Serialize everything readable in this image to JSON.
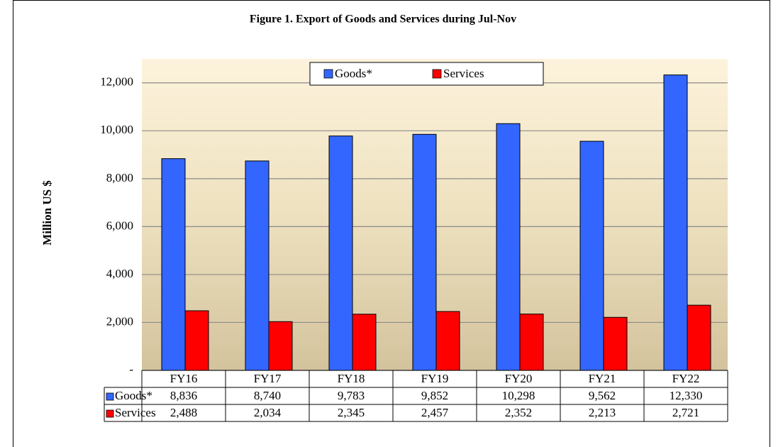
{
  "chart_data": {
    "type": "bar",
    "title": "Figure 1. Export of Goods and Services during Jul-Nov",
    "y_label": "Million US $",
    "categories": [
      "FY16",
      "FY17",
      "FY18",
      "FY19",
      "FY20",
      "FY21",
      "FY22"
    ],
    "series": [
      {
        "name": "Goods*",
        "color": "#3366ff",
        "values": [
          8836,
          8740,
          9783,
          9852,
          10298,
          9562,
          12330
        ],
        "value_labels": [
          "8,836",
          "8,740",
          "9,783",
          "9,852",
          "10,298",
          "9,562",
          "12,330"
        ]
      },
      {
        "name": "Services",
        "color": "#ff0000",
        "values": [
          2488,
          2034,
          2345,
          2457,
          2352,
          2213,
          2721
        ],
        "value_labels": [
          "2,488",
          "2,034",
          "2,345",
          "2,457",
          "2,352",
          "2,213",
          "2,721"
        ]
      }
    ],
    "ylim": [
      0,
      13000
    ],
    "yticks": [
      {
        "value": 0,
        "label": "-"
      },
      {
        "value": 2000,
        "label": "2,000"
      },
      {
        "value": 4000,
        "label": "4,000"
      },
      {
        "value": 6000,
        "label": "6,000"
      },
      {
        "value": 8000,
        "label": "8,000"
      },
      {
        "value": 10000,
        "label": "10,000"
      },
      {
        "value": 12000,
        "label": "12,000"
      }
    ],
    "grid": true,
    "legend": "top"
  }
}
